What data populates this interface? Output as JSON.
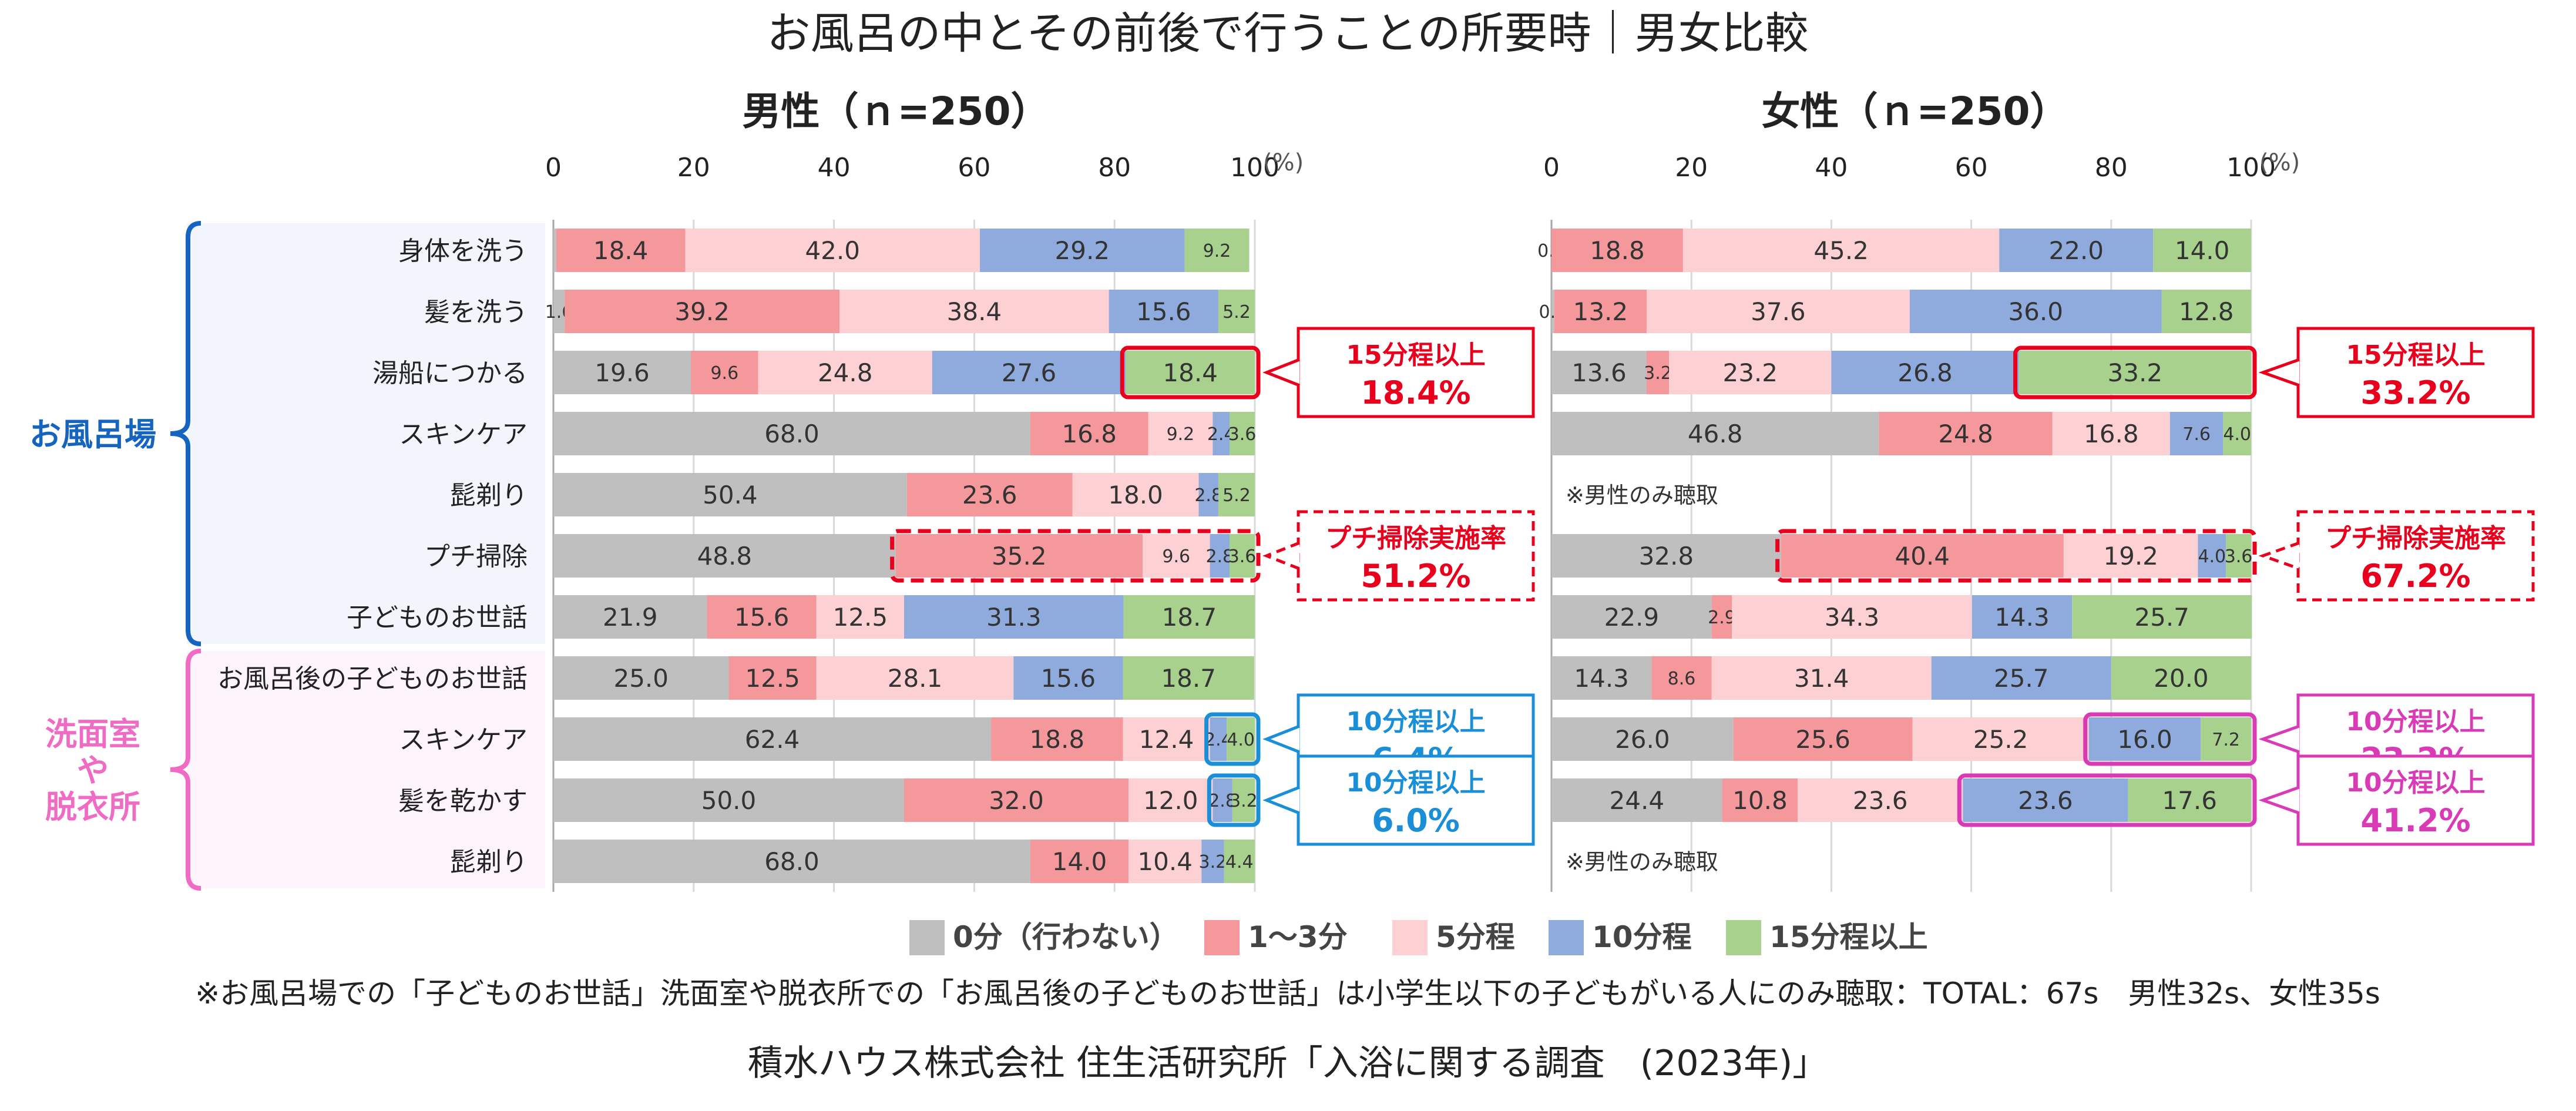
{
  "title": "お風呂の中とその前後で行うことの所要時｜男女比較",
  "footnote": "※お風呂場での「子どものお世話」洗面室や脱衣所での「お風呂後の子どものお世話」は小学生以下の子どもがいる人にのみ聴取：TOTAL：67s　男性32s、女性35s",
  "source": "積水ハウス株式会社 住生活研究所「入浴に関する調査　(2023年)」",
  "colors": {
    "zero": "#bfbfbf",
    "one_three": "#f4989c",
    "five": "#fdd0d3",
    "ten": "#8faadc",
    "fifteen": "#a9d18e",
    "red": "#e8001c",
    "blue": "#1a8fd8",
    "magenta": "#d93ab6",
    "navy": "#1565c0",
    "pink": "#ef6bc4"
  },
  "chart_data": {
    "type": "bar",
    "stacked": true,
    "orientation": "horizontal",
    "unit": "(%)",
    "xlim": [
      0,
      100
    ],
    "x_ticks": [
      "0",
      "20",
      "40",
      "60",
      "80",
      "100"
    ],
    "legend": [
      "0分（行わない）",
      "1～3分",
      "5分程",
      "10分程",
      "15分程以上"
    ],
    "legend_position": "bottom",
    "groups": [
      {
        "label": "お風呂場",
        "rows": [
          0,
          6
        ]
      },
      {
        "label": "洗面室\nや\n脱衣所",
        "rows": [
          7,
          10
        ]
      }
    ],
    "categories": [
      "身体を洗う",
      "髪を洗う",
      "湯船につかる",
      "スキンケア",
      "髭剃り",
      "プチ掃除",
      "子どものお世話",
      "お風呂後の子どものお世話",
      "スキンケア",
      "髪を乾かす",
      "髭剃り"
    ],
    "panels": [
      {
        "title": "男性（ｎ=250）",
        "rows": [
          [
            0.4,
            18.4,
            42.0,
            29.2,
            9.2
          ],
          [
            1.6,
            39.2,
            38.4,
            15.6,
            5.2
          ],
          [
            19.6,
            9.6,
            24.8,
            27.6,
            18.4
          ],
          [
            68.0,
            16.8,
            9.2,
            2.4,
            3.6
          ],
          [
            50.4,
            23.6,
            18.0,
            2.8,
            5.2
          ],
          [
            48.8,
            35.2,
            9.6,
            2.8,
            3.6
          ],
          [
            21.9,
            15.6,
            12.5,
            31.3,
            18.7
          ],
          [
            25.0,
            12.5,
            28.1,
            15.6,
            18.7
          ],
          [
            62.4,
            18.8,
            12.4,
            2.4,
            4.0
          ],
          [
            50.0,
            32.0,
            12.0,
            2.8,
            3.2
          ],
          [
            68.0,
            14.0,
            10.4,
            3.2,
            4.4
          ]
        ],
        "labels": [
          [
            "",
            "18.4",
            "42.0",
            "29.2",
            "9.2"
          ],
          [
            "1.6",
            "39.2",
            "38.4",
            "15.6",
            "5.2"
          ],
          [
            "19.6",
            "9.6",
            "24.8",
            "27.6",
            "18.4"
          ],
          [
            "68.0",
            "16.8",
            "9.2",
            "2.4",
            "3.6"
          ],
          [
            "50.4",
            "23.6",
            "18.0",
            "2.8",
            "5.2"
          ],
          [
            "48.8",
            "35.2",
            "9.6",
            "2.8",
            "3.6"
          ],
          [
            "21.9",
            "15.6",
            "12.5",
            "31.3",
            "18.7"
          ],
          [
            "25.0",
            "12.5",
            "28.1",
            "15.6",
            "18.7"
          ],
          [
            "62.4",
            "18.8",
            "12.4",
            "2.4",
            "4.0"
          ],
          [
            "50.0",
            "32.0",
            "12.0",
            "2.8",
            "3.2"
          ],
          [
            "68.0",
            "14.0",
            "10.4",
            "3.2",
            "4.4"
          ]
        ],
        "notes": [],
        "callouts": [
          {
            "text": "15分程以上",
            "value": "18.4%",
            "color": "red",
            "style": "solid",
            "row": 2,
            "seg_from": 4,
            "seg_to": 4
          },
          {
            "text": "プチ掃除実施率",
            "value": "51.2%",
            "color": "red",
            "style": "dashed",
            "row": 5,
            "seg_from": 1,
            "seg_to": 4
          },
          {
            "text": "10分程以上",
            "value": "6.4%",
            "color": "blue",
            "style": "solid",
            "row": 8,
            "seg_from": 3,
            "seg_to": 4
          },
          {
            "text": "10分程以上",
            "value": "6.0%",
            "color": "blue",
            "style": "solid",
            "row": 9,
            "seg_from": 3,
            "seg_to": 4
          }
        ]
      },
      {
        "title": "女性（ｎ=250）",
        "rows": [
          [
            0.0,
            18.8,
            45.2,
            22.0,
            14.0
          ],
          [
            0.4,
            13.2,
            37.6,
            36.0,
            12.8
          ],
          [
            13.6,
            3.2,
            23.2,
            26.8,
            33.2
          ],
          [
            46.8,
            24.8,
            16.8,
            7.6,
            4.0
          ],
          null,
          [
            32.8,
            40.4,
            19.2,
            4.0,
            3.6
          ],
          [
            22.9,
            2.9,
            34.3,
            14.3,
            25.7
          ],
          [
            14.3,
            8.6,
            31.4,
            25.7,
            20.0
          ],
          [
            26.0,
            25.6,
            25.2,
            16.0,
            7.2
          ],
          [
            24.4,
            10.8,
            23.6,
            23.6,
            17.6
          ],
          null
        ],
        "labels": [
          [
            "0.0",
            "18.8",
            "45.2",
            "22.0",
            "14.0"
          ],
          [
            "0.4",
            "13.2",
            "37.6",
            "36.0",
            "12.8"
          ],
          [
            "13.6",
            "3.2",
            "23.2",
            "26.8",
            "33.2"
          ],
          [
            "46.8",
            "24.8",
            "16.8",
            "7.6",
            "4.0"
          ],
          null,
          [
            "32.8",
            "40.4",
            "19.2",
            "4.0",
            "3.6"
          ],
          [
            "22.9",
            "2.9",
            "34.3",
            "14.3",
            "25.7"
          ],
          [
            "14.3",
            "8.6",
            "31.4",
            "25.7",
            "20.0"
          ],
          [
            "26.0",
            "25.6",
            "25.2",
            "16.0",
            "7.2"
          ],
          [
            "24.4",
            "10.8",
            "23.6",
            "23.6",
            "17.6"
          ],
          null
        ],
        "notes": [
          {
            "row": 4,
            "text": "※男性のみ聴取"
          },
          {
            "row": 10,
            "text": "※男性のみ聴取"
          }
        ],
        "callouts": [
          {
            "text": "15分程以上",
            "value": "33.2%",
            "color": "red",
            "style": "solid",
            "row": 2,
            "seg_from": 4,
            "seg_to": 4
          },
          {
            "text": "プチ掃除実施率",
            "value": "67.2%",
            "color": "red",
            "style": "dashed",
            "row": 5,
            "seg_from": 1,
            "seg_to": 4
          },
          {
            "text": "10分程以上",
            "value": "23.2%",
            "color": "magenta",
            "style": "solid",
            "row": 8,
            "seg_from": 3,
            "seg_to": 4
          },
          {
            "text": "10分程以上",
            "value": "41.2%",
            "color": "magenta",
            "style": "solid",
            "row": 9,
            "seg_from": 3,
            "seg_to": 4
          }
        ]
      }
    ]
  }
}
